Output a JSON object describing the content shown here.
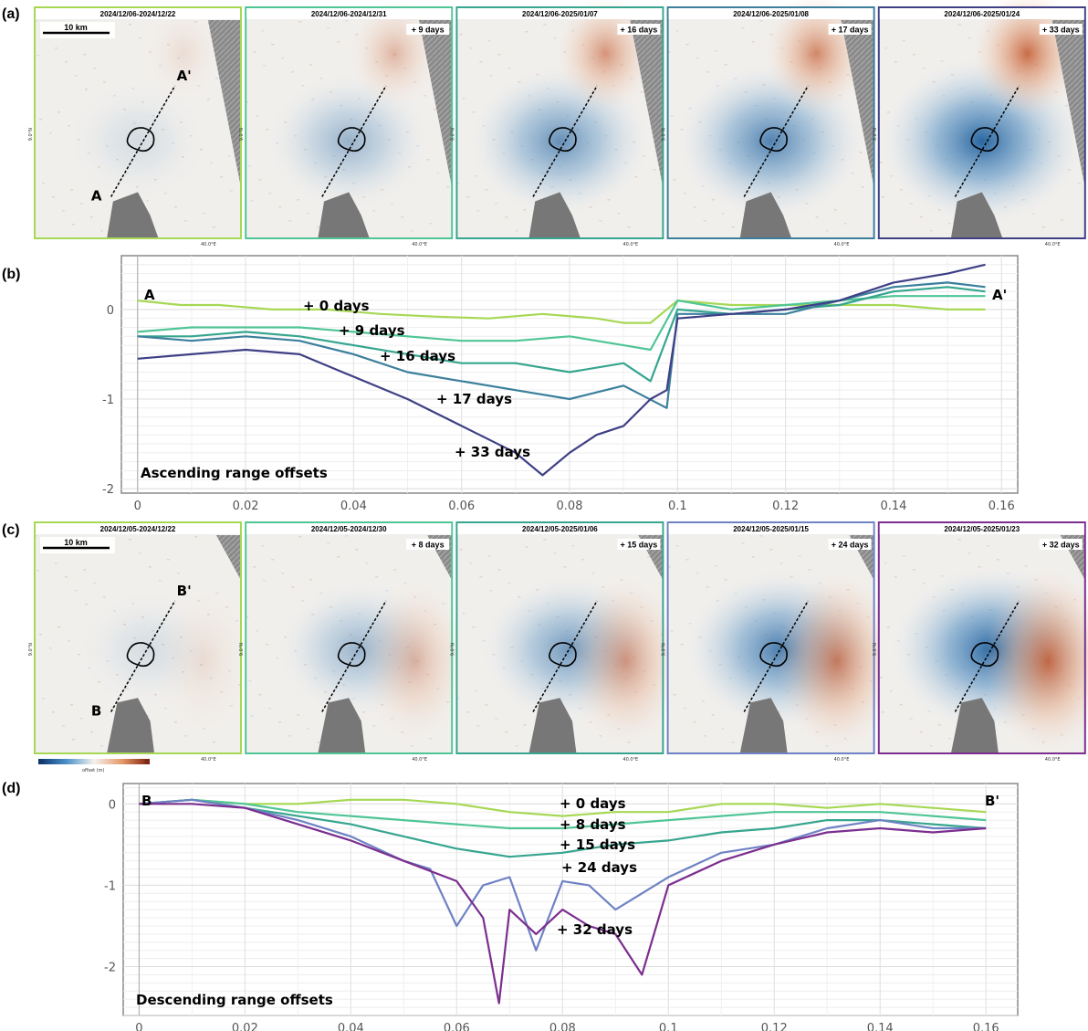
{
  "panel_labels": {
    "a": "(a)",
    "b": "(b)",
    "c": "(c)",
    "d": "(d)"
  },
  "map_common": {
    "scalebar": "10 km",
    "lon_tick": "40.0°E",
    "lat_tick": "9.0°N",
    "colorbar": {
      "min_label": "-2",
      "max_label": "2",
      "label": "offset (m)"
    }
  },
  "row_a": {
    "profile_start": "A",
    "profile_end": "A'",
    "panels": [
      {
        "title": "2024/12/06-2024/12/22",
        "badge": "",
        "frame": "#a6d854",
        "strength": 0.15
      },
      {
        "title": "2024/12/06-2024/12/31",
        "badge": "+ 9 days",
        "frame": "#4fc596",
        "strength": 0.45
      },
      {
        "title": "2024/12/06-2025/01/07",
        "badge": "+ 16 days",
        "frame": "#36a58f",
        "strength": 0.7
      },
      {
        "title": "2024/12/06-2025/01/08",
        "badge": "+ 17 days",
        "frame": "#3b7f9c",
        "strength": 0.8
      },
      {
        "title": "2024/12/06-2025/01/24",
        "badge": "+ 33 days",
        "frame": "#3f3f86",
        "strength": 1.0
      }
    ]
  },
  "row_c": {
    "profile_start": "B",
    "profile_end": "B'",
    "panels": [
      {
        "title": "2024/12/05-2024/12/22",
        "badge": "",
        "frame": "#a6d854",
        "strength": 0.15
      },
      {
        "title": "2024/12/05-2024/12/30",
        "badge": "+ 8 days",
        "frame": "#4fc596",
        "strength": 0.45
      },
      {
        "title": "2024/12/05-2025/01/06",
        "badge": "+ 15 days",
        "frame": "#36a58f",
        "strength": 0.65
      },
      {
        "title": "2024/12/05-2025/01/15",
        "badge": "+ 24 days",
        "frame": "#6f82c4",
        "strength": 0.85
      },
      {
        "title": "2024/12/05-2025/01/23",
        "badge": "+ 32 days",
        "frame": "#7b2e8f",
        "strength": 1.0
      }
    ]
  },
  "chart_data": [
    {
      "type": "line",
      "title": "Ascending range offsets",
      "start_label": "A",
      "end_label": "A'",
      "xlim": [
        -0.003,
        0.163
      ],
      "ylim": [
        -2.05,
        0.6
      ],
      "xticks": [
        0,
        0.02,
        0.04,
        0.06,
        0.08,
        0.1,
        0.12,
        0.14,
        0.16
      ],
      "xtick_labels": [
        "0",
        "0.02",
        "0.04",
        "0.06",
        "0.08",
        "0.1",
        "0.12",
        "0.14",
        "0.16"
      ],
      "yticks": [
        0,
        -1,
        -2
      ],
      "ytick_labels": [
        "0",
        "-1",
        "-2"
      ],
      "grid": true,
      "series": [
        {
          "name": "+ 0 days",
          "color": "#a6d854",
          "x": [
            0,
            0.008,
            0.015,
            0.025,
            0.035,
            0.045,
            0.055,
            0.065,
            0.075,
            0.085,
            0.09,
            0.095,
            0.1,
            0.11,
            0.12,
            0.13,
            0.14,
            0.15,
            0.157
          ],
          "y": [
            0.1,
            0.05,
            0.05,
            0.0,
            0.0,
            -0.05,
            -0.08,
            -0.1,
            -0.05,
            -0.1,
            -0.15,
            -0.15,
            0.1,
            0.05,
            0.05,
            0.05,
            0.05,
            0.0,
            0.0
          ]
        },
        {
          "name": "+ 9 days",
          "color": "#4fc596",
          "x": [
            0,
            0.01,
            0.02,
            0.03,
            0.04,
            0.05,
            0.06,
            0.07,
            0.08,
            0.09,
            0.095,
            0.1,
            0.11,
            0.12,
            0.13,
            0.14,
            0.15,
            0.157
          ],
          "y": [
            -0.25,
            -0.2,
            -0.2,
            -0.2,
            -0.25,
            -0.3,
            -0.35,
            -0.35,
            -0.3,
            -0.4,
            -0.45,
            0.1,
            0.0,
            0.05,
            0.1,
            0.15,
            0.15,
            0.15
          ]
        },
        {
          "name": "+ 16 days",
          "color": "#36a58f",
          "x": [
            0,
            0.01,
            0.02,
            0.03,
            0.04,
            0.05,
            0.06,
            0.07,
            0.08,
            0.09,
            0.095,
            0.1,
            0.11,
            0.12,
            0.13,
            0.14,
            0.15,
            0.157
          ],
          "y": [
            -0.3,
            -0.3,
            -0.25,
            -0.3,
            -0.4,
            -0.5,
            -0.6,
            -0.6,
            -0.7,
            -0.6,
            -0.8,
            0.0,
            -0.05,
            0.0,
            0.05,
            0.2,
            0.25,
            0.2
          ]
        },
        {
          "name": "+ 17 days",
          "color": "#3b7f9c",
          "x": [
            0,
            0.01,
            0.02,
            0.03,
            0.04,
            0.05,
            0.06,
            0.07,
            0.08,
            0.09,
            0.098,
            0.1,
            0.11,
            0.12,
            0.13,
            0.14,
            0.15,
            0.157
          ],
          "y": [
            -0.3,
            -0.35,
            -0.3,
            -0.35,
            -0.5,
            -0.7,
            -0.8,
            -0.9,
            -1.0,
            -0.85,
            -1.1,
            -0.05,
            -0.05,
            -0.05,
            0.1,
            0.25,
            0.3,
            0.25
          ]
        },
        {
          "name": "+ 33 days",
          "color": "#3f3f86",
          "x": [
            0,
            0.01,
            0.02,
            0.03,
            0.04,
            0.05,
            0.06,
            0.07,
            0.075,
            0.08,
            0.085,
            0.09,
            0.095,
            0.098,
            0.1,
            0.11,
            0.12,
            0.13,
            0.14,
            0.15,
            0.157
          ],
          "y": [
            -0.55,
            -0.5,
            -0.45,
            -0.5,
            -0.75,
            -1.0,
            -1.3,
            -1.6,
            -1.85,
            -1.6,
            -1.4,
            -1.3,
            -1.0,
            -0.9,
            -0.1,
            -0.05,
            0.0,
            0.1,
            0.3,
            0.4,
            0.5
          ]
        }
      ]
    },
    {
      "type": "line",
      "title": "Descending range offsets",
      "start_label": "B",
      "end_label": "B'",
      "xlim": [
        -0.003,
        0.166
      ],
      "ylim": [
        -2.6,
        0.25
      ],
      "xticks": [
        0,
        0.02,
        0.04,
        0.06,
        0.08,
        0.1,
        0.12,
        0.14,
        0.16
      ],
      "xtick_labels": [
        "0",
        "0.02",
        "0.04",
        "0.06",
        "0.08",
        "0.1",
        "0.12",
        "0.14",
        "0.16"
      ],
      "yticks": [
        0,
        -1,
        -2
      ],
      "ytick_labels": [
        "0",
        "-1",
        "-2"
      ],
      "grid": true,
      "series": [
        {
          "name": "+ 0 days",
          "color": "#a6d854",
          "x": [
            0,
            0.01,
            0.02,
            0.03,
            0.04,
            0.05,
            0.06,
            0.07,
            0.08,
            0.09,
            0.1,
            0.11,
            0.12,
            0.13,
            0.14,
            0.15,
            0.16
          ],
          "y": [
            0.0,
            0.05,
            0.0,
            0.0,
            0.05,
            0.05,
            0.0,
            -0.1,
            -0.15,
            -0.1,
            -0.1,
            0.0,
            0.0,
            -0.05,
            0.0,
            -0.05,
            -0.1
          ]
        },
        {
          "name": "+ 8 days",
          "color": "#4fc596",
          "x": [
            0,
            0.01,
            0.02,
            0.03,
            0.04,
            0.05,
            0.06,
            0.07,
            0.08,
            0.09,
            0.1,
            0.11,
            0.12,
            0.13,
            0.14,
            0.15,
            0.16
          ],
          "y": [
            0.0,
            0.05,
            0.0,
            -0.1,
            -0.15,
            -0.2,
            -0.25,
            -0.3,
            -0.3,
            -0.25,
            -0.2,
            -0.15,
            -0.1,
            -0.1,
            -0.1,
            -0.15,
            -0.2
          ]
        },
        {
          "name": "+ 15 days",
          "color": "#36a58f",
          "x": [
            0,
            0.01,
            0.02,
            0.03,
            0.04,
            0.05,
            0.06,
            0.07,
            0.08,
            0.09,
            0.1,
            0.11,
            0.12,
            0.13,
            0.14,
            0.15,
            0.16
          ],
          "y": [
            0.0,
            0.05,
            -0.05,
            -0.15,
            -0.25,
            -0.4,
            -0.55,
            -0.65,
            -0.6,
            -0.5,
            -0.45,
            -0.35,
            -0.3,
            -0.2,
            -0.2,
            -0.25,
            -0.3
          ]
        },
        {
          "name": "+ 24 days",
          "color": "#6f82c4",
          "x": [
            0,
            0.01,
            0.02,
            0.03,
            0.04,
            0.05,
            0.055,
            0.06,
            0.065,
            0.07,
            0.075,
            0.08,
            0.085,
            0.09,
            0.1,
            0.11,
            0.12,
            0.13,
            0.14,
            0.15,
            0.16
          ],
          "y": [
            0.0,
            0.05,
            -0.05,
            -0.2,
            -0.4,
            -0.7,
            -0.8,
            -1.5,
            -1.0,
            -0.9,
            -1.8,
            -0.95,
            -1.0,
            -1.3,
            -0.9,
            -0.6,
            -0.5,
            -0.3,
            -0.2,
            -0.3,
            -0.3
          ]
        },
        {
          "name": "+ 32 days",
          "color": "#7b2e8f",
          "x": [
            0,
            0.01,
            0.02,
            0.03,
            0.04,
            0.05,
            0.06,
            0.065,
            0.068,
            0.07,
            0.075,
            0.08,
            0.085,
            0.09,
            0.095,
            0.1,
            0.11,
            0.12,
            0.13,
            0.14,
            0.15,
            0.16
          ],
          "y": [
            0.0,
            0.0,
            -0.05,
            -0.25,
            -0.45,
            -0.7,
            -0.95,
            -1.4,
            -2.45,
            -1.3,
            -1.6,
            -1.3,
            -1.5,
            -1.6,
            -2.1,
            -1.0,
            -0.7,
            -0.5,
            -0.35,
            -0.3,
            -0.35,
            -0.3
          ]
        }
      ]
    }
  ]
}
